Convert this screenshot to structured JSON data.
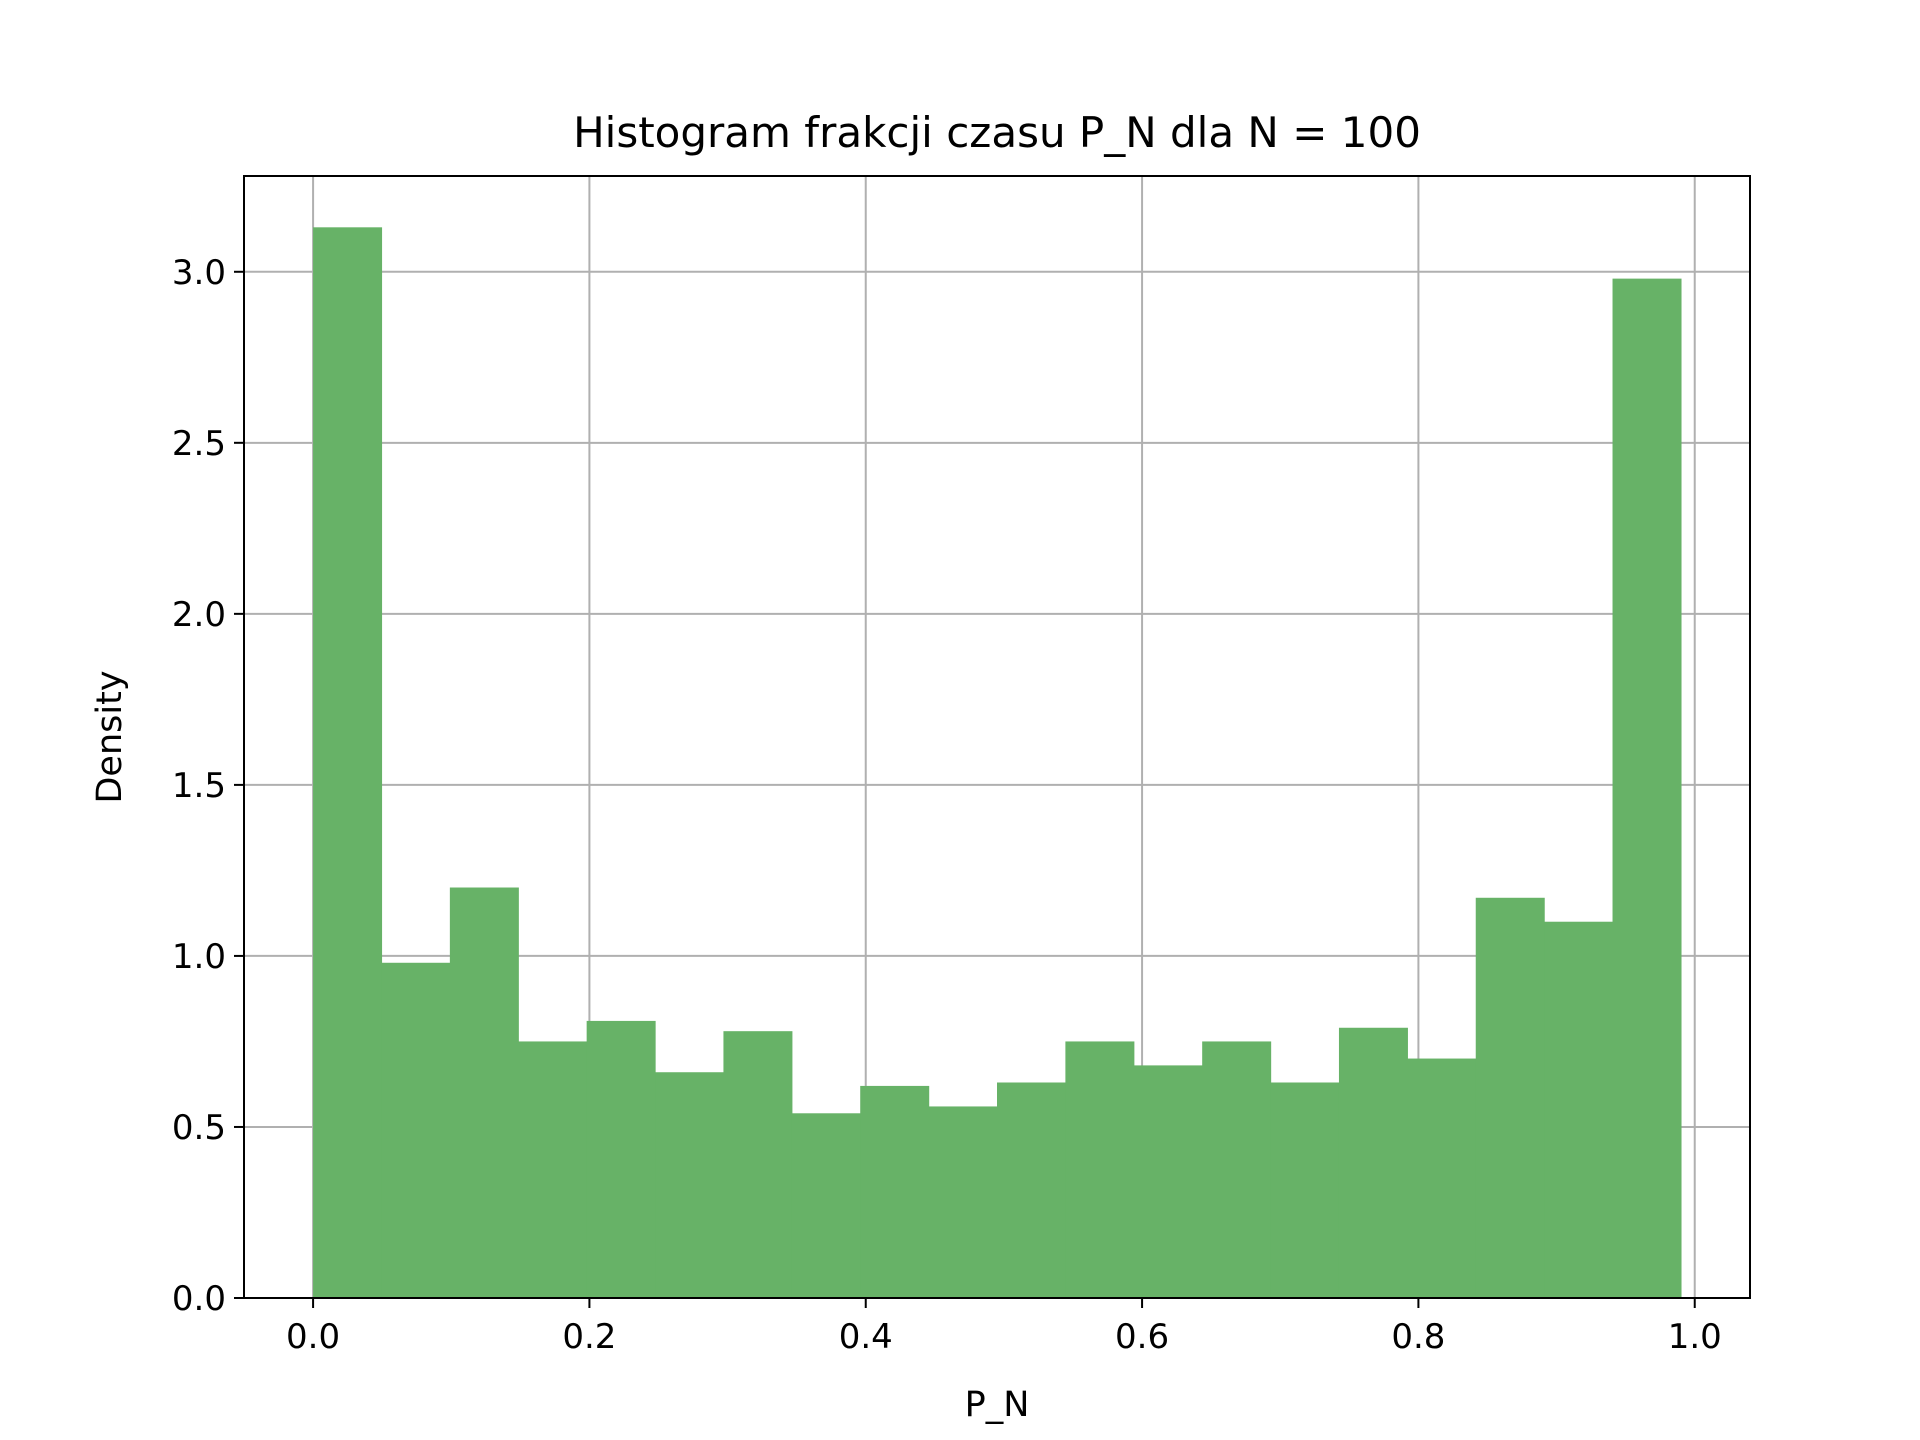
{
  "chart_data": {
    "type": "bar",
    "title": "Histogram frakcji czasu P_N dla N = 100",
    "xlabel": "P_N",
    "ylabel": "Density",
    "xlim": [
      -0.05,
      1.04
    ],
    "ylim": [
      0,
      3.28
    ],
    "grid": true,
    "bar_color": "#67b267",
    "grid_color": "#b0b0b0",
    "axis_color": "#000000",
    "xticks": [
      "0.0",
      "0.2",
      "0.4",
      "0.6",
      "0.8",
      "1.0"
    ],
    "xtick_values": [
      0,
      0.2,
      0.4,
      0.6,
      0.8,
      1.0
    ],
    "yticks": [
      "0.0",
      "0.5",
      "1.0",
      "1.5",
      "2.0",
      "2.5",
      "3.0"
    ],
    "ytick_values": [
      0,
      0.5,
      1.0,
      1.5,
      2.0,
      2.5,
      3.0
    ],
    "bin_edges": [
      0.0,
      0.0495,
      0.099,
      0.1485,
      0.198,
      0.2475,
      0.297,
      0.3465,
      0.396,
      0.4455,
      0.495,
      0.5445,
      0.594,
      0.6435,
      0.693,
      0.7425,
      0.792,
      0.8415,
      0.891,
      0.9405,
      0.99
    ],
    "values": [
      3.13,
      0.98,
      1.2,
      0.75,
      0.81,
      0.66,
      0.78,
      0.54,
      0.62,
      0.56,
      0.63,
      0.75,
      0.68,
      0.75,
      0.63,
      0.79,
      0.7,
      1.17,
      1.1,
      2.98
    ]
  }
}
